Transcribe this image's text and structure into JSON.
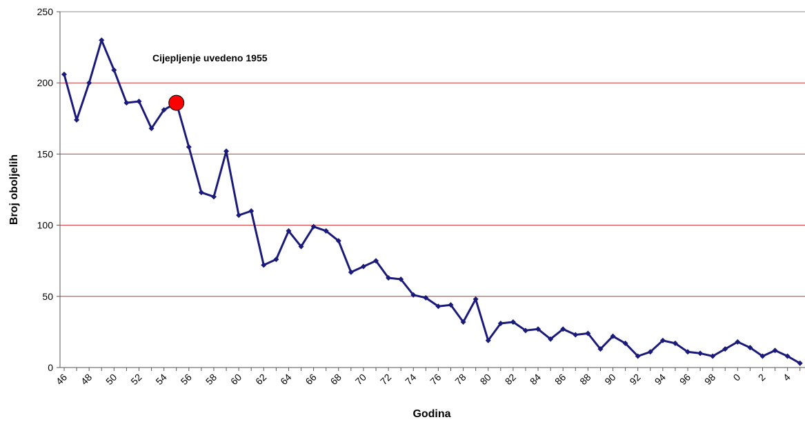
{
  "chart_data": {
    "type": "line",
    "xlabel": "Godina",
    "ylabel": "Broj oboljelih",
    "annotation": "Cijepljenje uvedeno 1955",
    "ylim": [
      0,
      250
    ],
    "yticks": [
      0,
      50,
      100,
      150,
      200,
      250
    ],
    "xtick_labels": [
      "46",
      "48",
      "50",
      "52",
      "54",
      "56",
      "58",
      "60",
      "62",
      "64",
      "66",
      "68",
      "70",
      "72",
      "74",
      "76",
      "78",
      "80",
      "82",
      "84",
      "86",
      "88",
      "90",
      "92",
      "94",
      "96",
      "98",
      "0",
      "2",
      "4"
    ],
    "grid": "horizontal major gridlines",
    "colors": {
      "line": "#1a1a7a",
      "grid": "#cc3333",
      "highlight": "#ff0000"
    },
    "highlight": {
      "year": 1955,
      "value": 186
    },
    "series": [
      {
        "years": [
          1946,
          1947,
          1948,
          1949,
          1950,
          1951,
          1952,
          1953,
          1954,
          1955,
          1956,
          1957,
          1958,
          1959,
          1960,
          1961,
          1962,
          1963,
          1964,
          1965,
          1966,
          1967,
          1968,
          1969,
          1970,
          1971,
          1972,
          1973,
          1974,
          1975,
          1976,
          1977,
          1978,
          1979,
          1980,
          1981,
          1982,
          1983,
          1984,
          1985,
          1986,
          1987,
          1988,
          1989,
          1990,
          1991,
          1992,
          1993,
          1994,
          1995,
          1996,
          1997,
          1998,
          1999,
          2000,
          2001,
          2002,
          2003,
          2004,
          2005
        ],
        "values": [
          206,
          174,
          200,
          230,
          209,
          186,
          187,
          168,
          181,
          186,
          155,
          123,
          120,
          152,
          107,
          110,
          72,
          76,
          96,
          85,
          99,
          96,
          89,
          67,
          71,
          75,
          63,
          62,
          51,
          49,
          43,
          44,
          32,
          48,
          19,
          31,
          32,
          26,
          27,
          20,
          27,
          23,
          24,
          13,
          22,
          17,
          8,
          11,
          19,
          17,
          11,
          10,
          8,
          13,
          18,
          14,
          8,
          12,
          8,
          3
        ]
      }
    ]
  }
}
